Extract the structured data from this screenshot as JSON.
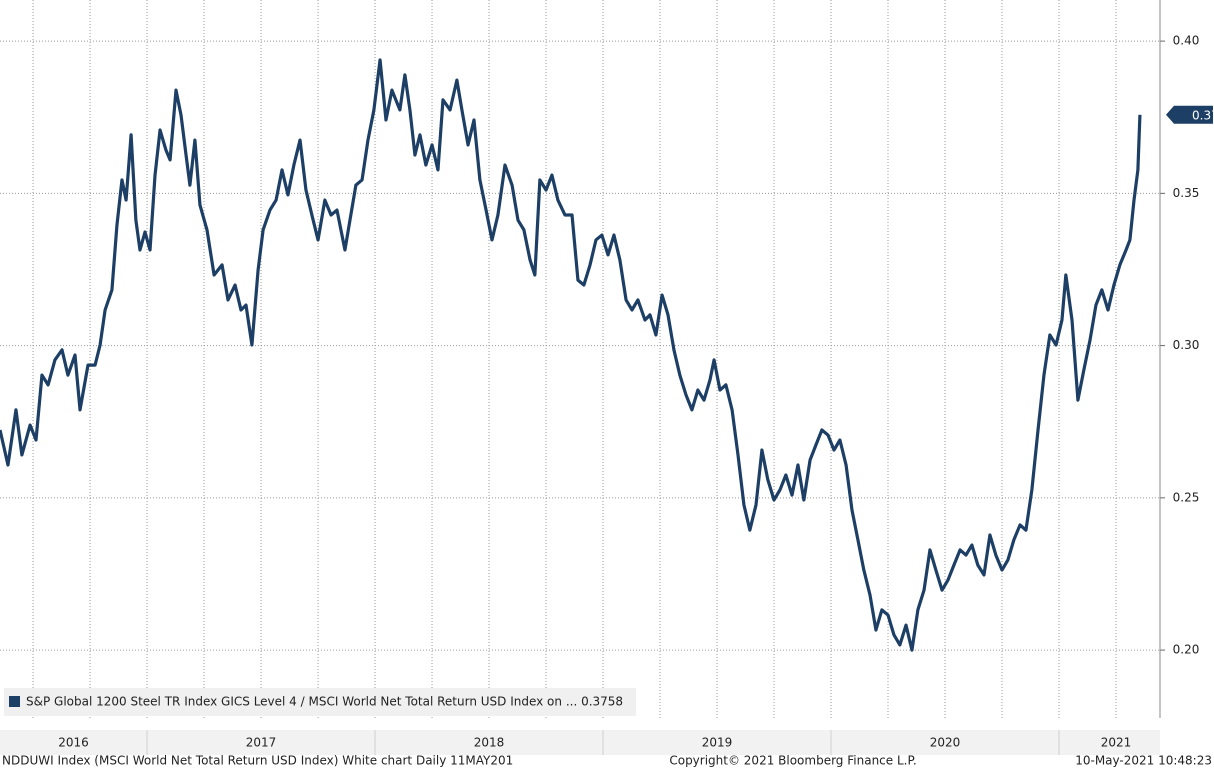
{
  "chart_data": {
    "type": "line",
    "footer_left": "NDDUWI Index (MSCI World Net Total Return USD Index) White chart  Daily 11MAY201",
    "footer_center": "Copyright© 2021 Bloomberg Finance L.P.",
    "footer_right": "10-May-2021 10:48:23",
    "xlim": [
      2016.355,
      2021.443
    ],
    "xticks": [
      2016,
      2017,
      2018,
      2019,
      2020,
      2021
    ],
    "ylim": [
      0.1777,
      0.4135
    ],
    "yticks": [
      {
        "value": 0.2,
        "label": "0.20"
      },
      {
        "value": 0.25,
        "label": "0.25"
      },
      {
        "value": 0.3,
        "label": "0.30"
      },
      {
        "value": 0.35,
        "label": "0.35"
      },
      {
        "value": 0.4,
        "label": "0.40"
      }
    ],
    "grid": true,
    "legend": "bottom-left",
    "series": [
      {
        "name": "S&P Global 1200 Steel TR Index GICS Level 4 / MSCI World Net Total Return USD Index on ... 0.3758",
        "color": "#1d3f66",
        "x": [
          2016.355,
          2016.39,
          2016.425,
          2016.451,
          2016.487,
          2016.513,
          2016.539,
          2016.566,
          2016.596,
          2016.627,
          2016.653,
          2016.684,
          2016.706,
          2016.741,
          2016.772,
          2016.794,
          2016.816,
          2016.846,
          2016.868,
          2016.89,
          2016.908,
          2016.93,
          2016.951,
          2016.969,
          2016.991,
          2017.013,
          2017.035,
          2017.057,
          2017.083,
          2017.101,
          2017.127,
          2017.149,
          2017.171,
          2017.188,
          2017.21,
          2017.232,
          2017.263,
          2017.294,
          2017.329,
          2017.355,
          2017.386,
          2017.412,
          2017.434,
          2017.46,
          2017.487,
          2017.509,
          2017.539,
          2017.566,
          2017.592,
          2017.618,
          2017.644,
          2017.671,
          2017.697,
          2017.723,
          2017.75,
          2017.78,
          2017.807,
          2017.833,
          2017.868,
          2017.89,
          2017.916,
          2017.943,
          2017.969,
          2017.995,
          2018.022,
          2018.048,
          2018.074,
          2018.109,
          2018.131,
          2018.153,
          2018.175,
          2018.197,
          2018.223,
          2018.25,
          2018.276,
          2018.298,
          2018.329,
          2018.359,
          2018.381,
          2018.408,
          2018.434,
          2018.46,
          2018.487,
          2018.513,
          2018.539,
          2018.57,
          2018.601,
          2018.627,
          2018.653,
          2018.68,
          2018.701,
          2018.723,
          2018.75,
          2018.776,
          2018.802,
          2018.833,
          2018.864,
          2018.89,
          2018.916,
          2018.943,
          2018.969,
          2018.995,
          2019.022,
          2019.048,
          2019.074,
          2019.101,
          2019.127,
          2019.153,
          2019.184,
          2019.206,
          2019.232,
          2019.259,
          2019.285,
          2019.311,
          2019.337,
          2019.364,
          2019.39,
          2019.416,
          2019.443,
          2019.469,
          2019.487,
          2019.513,
          2019.539,
          2019.566,
          2019.592,
          2019.618,
          2019.644,
          2019.671,
          2019.697,
          2019.723,
          2019.75,
          2019.776,
          2019.802,
          2019.829,
          2019.855,
          2019.881,
          2019.908,
          2019.934,
          2019.96,
          2019.987,
          2020.013,
          2020.039,
          2020.066,
          2020.092,
          2020.118,
          2020.144,
          2020.171,
          2020.197,
          2020.223,
          2020.25,
          2020.276,
          2020.302,
          2020.329,
          2020.355,
          2020.381,
          2020.408,
          2020.434,
          2020.46,
          2020.487,
          2020.513,
          2020.539,
          2020.566,
          2020.592,
          2020.618,
          2020.644,
          2020.671,
          2020.697,
          2020.723,
          2020.75,
          2020.776,
          2020.802,
          2020.829,
          2020.855,
          2020.881,
          2020.908,
          2020.934,
          2020.96,
          2020.987,
          2021.013,
          2021.03,
          2021.057,
          2021.083,
          2021.109,
          2021.136,
          2021.162,
          2021.188,
          2021.215,
          2021.241,
          2021.267,
          2021.294,
          2021.311,
          2021.329,
          2021.346,
          2021.355
        ],
        "values": [
          0.2723,
          0.2608,
          0.2789,
          0.2641,
          0.2739,
          0.269,
          0.2903,
          0.2871,
          0.2953,
          0.2986,
          0.2903,
          0.2969,
          0.2789,
          0.2936,
          0.2936,
          0.3002,
          0.3117,
          0.3183,
          0.3396,
          0.3544,
          0.3478,
          0.3692,
          0.3412,
          0.3314,
          0.3373,
          0.3314,
          0.356,
          0.3708,
          0.3642,
          0.361,
          0.3839,
          0.3757,
          0.3626,
          0.3527,
          0.3675,
          0.3462,
          0.338,
          0.3232,
          0.3265,
          0.315,
          0.3199,
          0.3117,
          0.3133,
          0.3002,
          0.3248,
          0.338,
          0.3445,
          0.3478,
          0.3577,
          0.3495,
          0.3593,
          0.3675,
          0.3511,
          0.3429,
          0.3347,
          0.3478,
          0.3429,
          0.3445,
          0.3314,
          0.3412,
          0.3527,
          0.3544,
          0.3675,
          0.3774,
          0.3938,
          0.3741,
          0.3839,
          0.3774,
          0.3889,
          0.3774,
          0.3626,
          0.3692,
          0.3593,
          0.3659,
          0.3577,
          0.3807,
          0.3774,
          0.3872,
          0.3774,
          0.3659,
          0.3741,
          0.3544,
          0.3445,
          0.3347,
          0.3429,
          0.3593,
          0.3527,
          0.3412,
          0.338,
          0.3281,
          0.3232,
          0.3544,
          0.3511,
          0.356,
          0.3478,
          0.3429,
          0.3429,
          0.3215,
          0.3199,
          0.3265,
          0.3347,
          0.3363,
          0.3298,
          0.3363,
          0.3281,
          0.315,
          0.3117,
          0.315,
          0.3084,
          0.3101,
          0.3035,
          0.3166,
          0.3101,
          0.2986,
          0.2903,
          0.2838,
          0.2789,
          0.2854,
          0.2821,
          0.2887,
          0.2953,
          0.2854,
          0.2871,
          0.2789,
          0.2641,
          0.2477,
          0.2394,
          0.2477,
          0.2657,
          0.2559,
          0.2493,
          0.2526,
          0.2575,
          0.2509,
          0.2608,
          0.2493,
          0.2624,
          0.2674,
          0.2723,
          0.2706,
          0.2657,
          0.269,
          0.2608,
          0.246,
          0.2362,
          0.2263,
          0.2181,
          0.2066,
          0.2132,
          0.2115,
          0.205,
          0.2017,
          0.2082,
          0.2,
          0.2132,
          0.2197,
          0.2329,
          0.2263,
          0.2197,
          0.223,
          0.2279,
          0.2329,
          0.2312,
          0.2345,
          0.2279,
          0.2247,
          0.2378,
          0.2312,
          0.2263,
          0.2296,
          0.2362,
          0.2411,
          0.2394,
          0.2526,
          0.2723,
          0.2903,
          0.3035,
          0.3002,
          0.3084,
          0.3232,
          0.3084,
          0.2821,
          0.292,
          0.3018,
          0.3133,
          0.3183,
          0.3117,
          0.3199,
          0.3265,
          0.3314,
          0.3347,
          0.3478,
          0.3577,
          0.3758
        ]
      }
    ]
  }
}
